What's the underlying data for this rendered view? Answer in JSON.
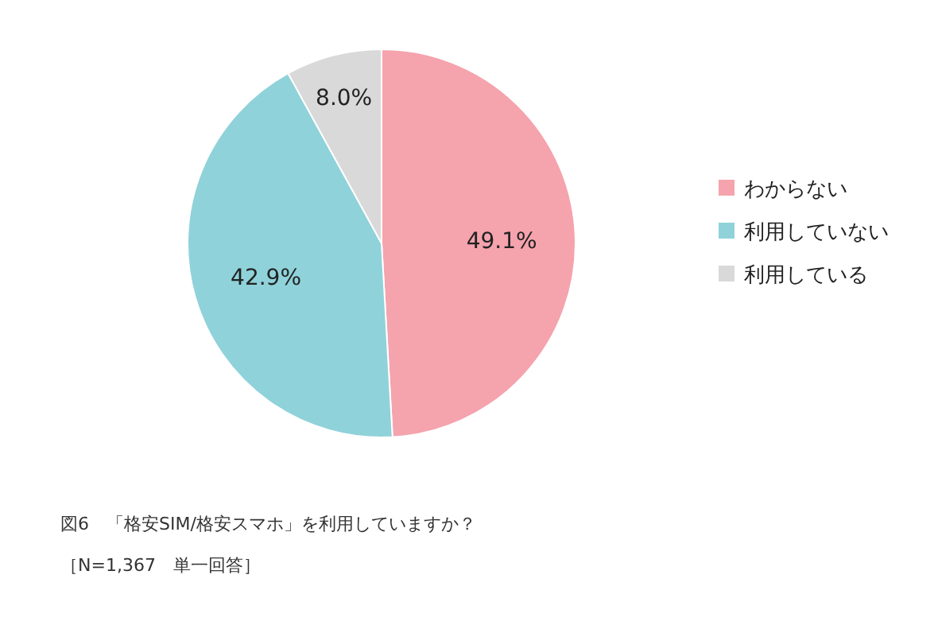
{
  "chart_data": {
    "type": "pie",
    "categories": [
      "わからない",
      "利用していない",
      "利用している"
    ],
    "values": [
      49.1,
      42.9,
      8.0
    ],
    "colors": [
      "#f5a3ad",
      "#8fd2da",
      "#d9d9d9"
    ],
    "value_labels": [
      "49.1%",
      "42.9%",
      "8.0%"
    ],
    "legend": "right",
    "annotations": [
      "図6　「格安SIM/格安スマホ」を利用していますか？",
      "［N=1,367　単一回答］"
    ]
  }
}
